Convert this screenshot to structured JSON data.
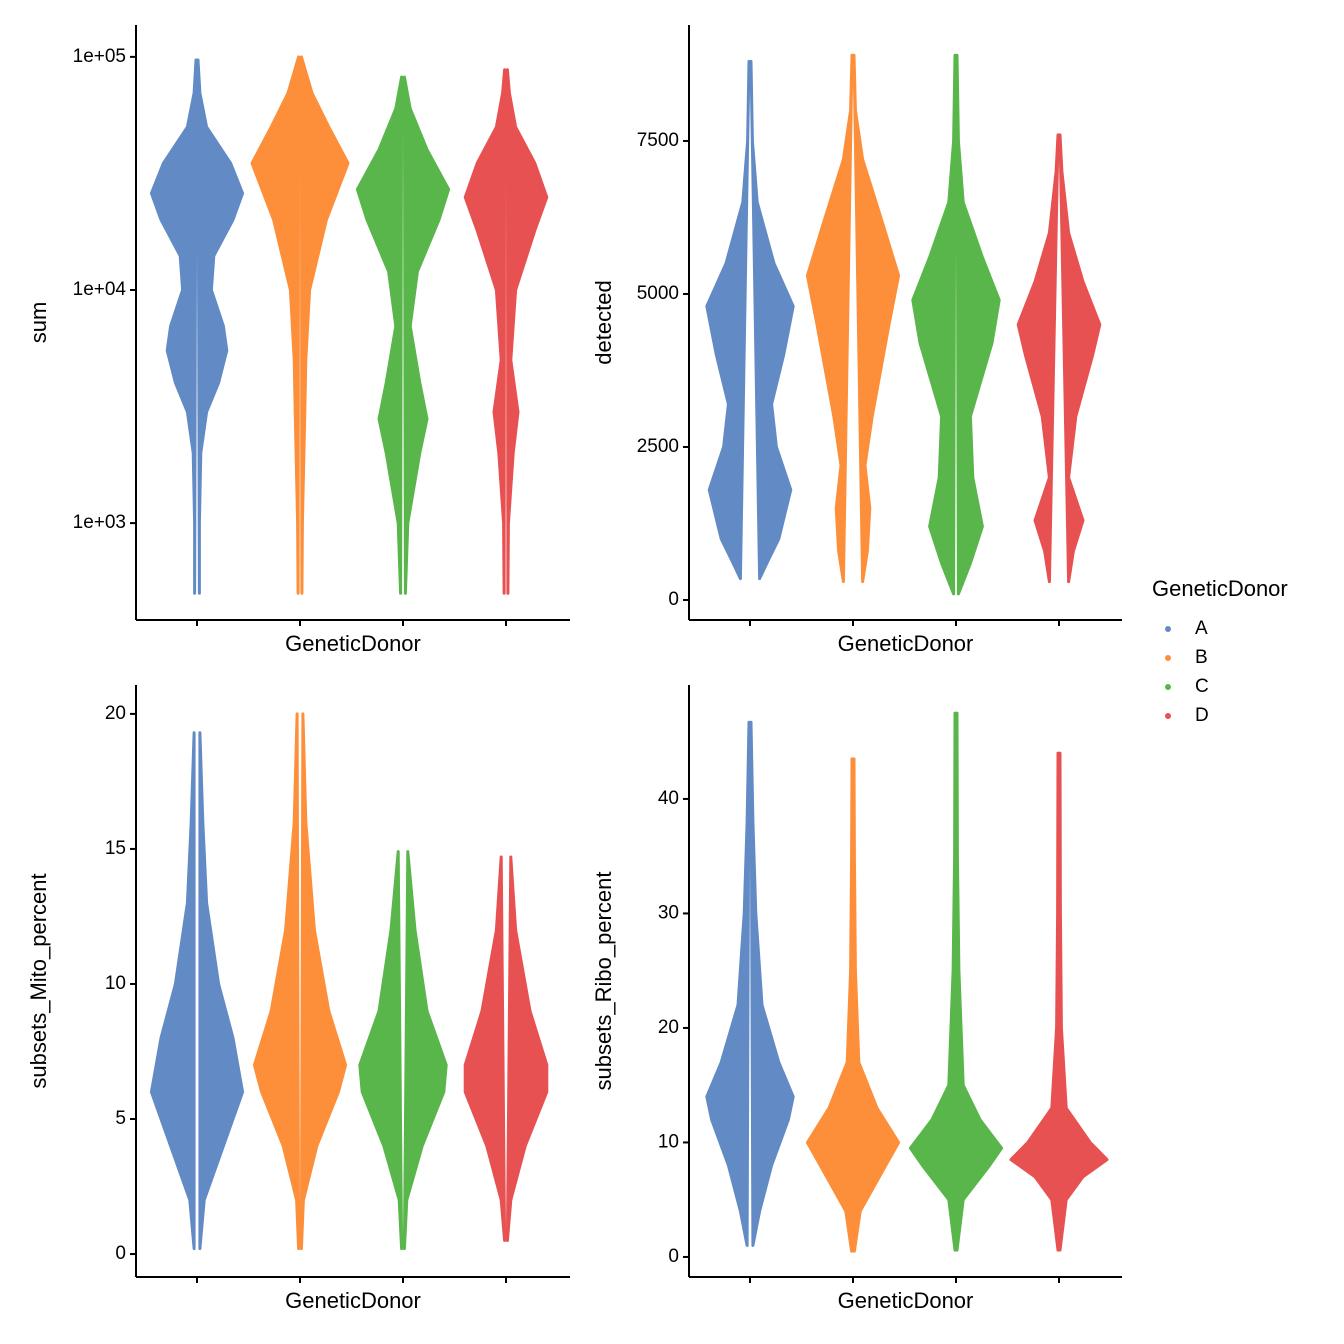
{
  "legend": {
    "title": "GeneticDonor",
    "groups": [
      {
        "name": "A",
        "color": "#628bc6"
      },
      {
        "name": "B",
        "color": "#fd8f3b"
      },
      {
        "name": "C",
        "color": "#59b64a"
      },
      {
        "name": "D",
        "color": "#e85152"
      }
    ]
  },
  "chart_data": [
    {
      "type": "violin",
      "xlabel": "GeneticDonor",
      "ylabel": "sum",
      "log": true,
      "ylim": [
        384,
        137000
      ],
      "yticks": [
        {
          "value": 1000,
          "label": "1e+03"
        },
        {
          "value": 10000,
          "label": "1e+04"
        },
        {
          "value": 100000,
          "label": "1e+05"
        }
      ],
      "violins": [
        {
          "y": [
            500,
            1000,
            2000,
            3000,
            4000,
            5500,
            7000,
            10000,
            14000,
            20000,
            26000,
            35000,
            50000,
            70000,
            97000
          ],
          "density": [
            0.05,
            0.05,
            0.08,
            0.2,
            0.45,
            0.62,
            0.55,
            0.3,
            0.35,
            0.75,
            0.95,
            0.7,
            0.2,
            0.06,
            0.02
          ]
        },
        {
          "y": [
            500,
            1000,
            3000,
            5000,
            10000,
            20000,
            35000,
            50000,
            70000,
            100000
          ],
          "density": [
            0.04,
            0.05,
            0.1,
            0.12,
            0.2,
            0.55,
            1.0,
            0.6,
            0.25,
            0.03
          ]
        },
        {
          "y": [
            500,
            1000,
            2000,
            2800,
            4000,
            7000,
            12000,
            20000,
            27000,
            40000,
            60000,
            82000
          ],
          "density": [
            0.05,
            0.1,
            0.35,
            0.5,
            0.35,
            0.15,
            0.3,
            0.75,
            0.95,
            0.5,
            0.15,
            0.03
          ]
        },
        {
          "y": [
            500,
            1000,
            2000,
            3000,
            5000,
            10000,
            18000,
            25000,
            35000,
            50000,
            70000,
            88000
          ],
          "density": [
            0.04,
            0.05,
            0.15,
            0.25,
            0.1,
            0.2,
            0.6,
            0.85,
            0.6,
            0.2,
            0.07,
            0.03
          ]
        }
      ]
    },
    {
      "type": "violin",
      "xlabel": "GeneticDonor",
      "ylabel": "detected",
      "ylim": [
        -327,
        9395
      ],
      "yticks": [
        0,
        2500,
        5000,
        7500
      ],
      "violins": [
        {
          "y": [
            350,
            600,
            1000,
            1800,
            2500,
            3200,
            4000,
            4800,
            5500,
            6500,
            7500,
            8800
          ],
          "density": [
            0.2,
            0.35,
            0.6,
            0.85,
            0.55,
            0.45,
            0.7,
            0.9,
            0.5,
            0.15,
            0.05,
            0.02
          ]
        },
        {
          "y": [
            300,
            800,
            1500,
            2200,
            3000,
            4500,
            5300,
            6200,
            7200,
            8000,
            8900
          ],
          "density": [
            0.2,
            0.3,
            0.35,
            0.25,
            0.4,
            0.75,
            0.95,
            0.6,
            0.2,
            0.05,
            0.02
          ]
        },
        {
          "y": [
            100,
            600,
            1200,
            2000,
            3000,
            4200,
            4900,
            5600,
            6500,
            7500,
            8900
          ],
          "density": [
            0.05,
            0.3,
            0.55,
            0.35,
            0.3,
            0.75,
            0.9,
            0.55,
            0.15,
            0.05,
            0.02
          ]
        },
        {
          "y": [
            300,
            800,
            1300,
            2000,
            3000,
            4000,
            4500,
            5200,
            6000,
            7000,
            7600
          ],
          "density": [
            0.2,
            0.3,
            0.5,
            0.2,
            0.35,
            0.7,
            0.85,
            0.5,
            0.2,
            0.06,
            0.02
          ]
        }
      ]
    },
    {
      "type": "violin",
      "xlabel": "GeneticDonor",
      "ylabel": "subsets_Mito_percent",
      "ylim": [
        -0.85,
        21.07
      ],
      "yticks": [
        0,
        5,
        10,
        15,
        20
      ],
      "violins": [
        {
          "y": [
            0.2,
            2,
            4,
            6,
            8,
            10,
            13,
            16,
            19.3
          ],
          "density": [
            0.06,
            0.15,
            0.55,
            0.95,
            0.75,
            0.45,
            0.2,
            0.12,
            0.06
          ]
        },
        {
          "y": [
            0.2,
            2,
            4,
            6,
            7,
            9,
            12,
            16,
            20
          ],
          "density": [
            0.03,
            0.07,
            0.35,
            0.8,
            0.95,
            0.6,
            0.3,
            0.12,
            0.06
          ]
        },
        {
          "y": [
            0.2,
            2,
            4,
            6,
            7,
            9,
            12,
            14.9
          ],
          "density": [
            0.03,
            0.08,
            0.4,
            0.85,
            0.9,
            0.5,
            0.25,
            0.1
          ]
        },
        {
          "y": [
            0.5,
            2,
            4,
            6,
            7,
            9,
            12,
            14.7
          ],
          "density": [
            0.03,
            0.1,
            0.4,
            0.85,
            0.85,
            0.5,
            0.2,
            0.1
          ]
        }
      ]
    },
    {
      "type": "violin",
      "xlabel": "GeneticDonor",
      "ylabel": "subsets_Ribo_percent",
      "ylim": [
        -1.75,
        49.95
      ],
      "yticks": [
        0,
        10,
        20,
        30,
        40
      ],
      "violins": [
        {
          "y": [
            1,
            4,
            8,
            12,
            14,
            17,
            22,
            30,
            38,
            46.7
          ],
          "density": [
            0.06,
            0.2,
            0.45,
            0.8,
            0.9,
            0.6,
            0.25,
            0.12,
            0.06,
            0.02
          ]
        },
        {
          "y": [
            0.5,
            4,
            7,
            10,
            13,
            17,
            25,
            35,
            43.5
          ],
          "density": [
            0.03,
            0.15,
            0.55,
            0.95,
            0.5,
            0.12,
            0.05,
            0.03,
            0.02
          ]
        },
        {
          "y": [
            0.6,
            5,
            8,
            9.5,
            12,
            15,
            25,
            35,
            47.5
          ],
          "density": [
            0.02,
            0.15,
            0.7,
            0.95,
            0.5,
            0.15,
            0.06,
            0.03,
            0.02
          ]
        },
        {
          "y": [
            0.6,
            5,
            7,
            8.5,
            10,
            13,
            20,
            30,
            44
          ],
          "density": [
            0.02,
            0.15,
            0.5,
            1.0,
            0.65,
            0.15,
            0.05,
            0.03,
            0.02
          ]
        }
      ]
    }
  ]
}
